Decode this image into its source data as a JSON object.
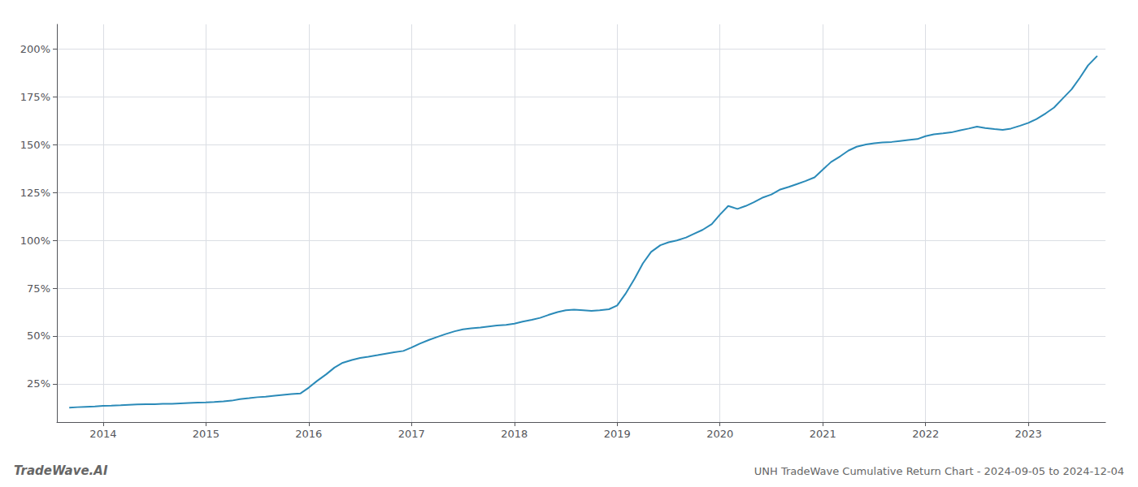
{
  "chart_data": {
    "type": "line",
    "title": "UNH TradeWave Cumulative Return Chart - 2024-09-05 to 2024-12-04",
    "annotations": [
      "TradeWave.AI"
    ],
    "color": "#2a8ab8",
    "grid": true,
    "xlim": [
      2013.55,
      2023.75
    ],
    "xticks": [
      2014,
      2015,
      2016,
      2017,
      2018,
      2019,
      2020,
      2021,
      2022,
      2023
    ],
    "ylim": [
      5,
      213
    ],
    "yticks": [
      {
        "value": 25,
        "label": "25%"
      },
      {
        "value": 50,
        "label": "50%"
      },
      {
        "value": 75,
        "label": "75%"
      },
      {
        "value": 100,
        "label": "100%"
      },
      {
        "value": 125,
        "label": "125%"
      },
      {
        "value": 150,
        "label": "150%"
      },
      {
        "value": 175,
        "label": "175%"
      },
      {
        "value": 200,
        "label": "200%"
      }
    ],
    "x": [
      2013.67,
      2013.75,
      2013.83,
      2013.92,
      2014.0,
      2014.08,
      2014.17,
      2014.25,
      2014.33,
      2014.42,
      2014.5,
      2014.58,
      2014.67,
      2014.75,
      2014.83,
      2014.92,
      2015.0,
      2015.08,
      2015.17,
      2015.25,
      2015.33,
      2015.42,
      2015.5,
      2015.58,
      2015.67,
      2015.75,
      2015.83,
      2015.92,
      2016.0,
      2016.08,
      2016.17,
      2016.25,
      2016.33,
      2016.42,
      2016.5,
      2016.58,
      2016.67,
      2016.75,
      2016.83,
      2016.92,
      2017.0,
      2017.08,
      2017.17,
      2017.25,
      2017.33,
      2017.42,
      2017.5,
      2017.58,
      2017.67,
      2017.75,
      2017.83,
      2017.92,
      2018.0,
      2018.08,
      2018.17,
      2018.25,
      2018.33,
      2018.42,
      2018.5,
      2018.58,
      2018.67,
      2018.75,
      2018.83,
      2018.92,
      2019.0,
      2019.08,
      2019.17,
      2019.25,
      2019.33,
      2019.42,
      2019.5,
      2019.58,
      2019.67,
      2019.75,
      2019.83,
      2019.92,
      2020.0,
      2020.08,
      2020.17,
      2020.25,
      2020.33,
      2020.42,
      2020.5,
      2020.58,
      2020.67,
      2020.75,
      2020.83,
      2020.92,
      2021.0,
      2021.08,
      2021.17,
      2021.25,
      2021.33,
      2021.42,
      2021.5,
      2021.58,
      2021.67,
      2021.75,
      2021.83,
      2021.92,
      2022.0,
      2022.08,
      2022.17,
      2022.25,
      2022.33,
      2022.42,
      2022.5,
      2022.58,
      2022.67,
      2022.75,
      2022.83,
      2022.92,
      2023.0,
      2023.08,
      2023.17,
      2023.25,
      2023.33,
      2023.42,
      2023.5,
      2023.58,
      2023.67
    ],
    "values": [
      12.5,
      12.8,
      13.0,
      13.2,
      13.5,
      13.6,
      13.8,
      14.0,
      14.2,
      14.3,
      14.3,
      14.5,
      14.6,
      14.8,
      15.0,
      15.2,
      15.3,
      15.5,
      15.8,
      16.2,
      17.0,
      17.5,
      18.0,
      18.3,
      18.8,
      19.2,
      19.6,
      20.0,
      23.0,
      26.5,
      30.0,
      33.5,
      36.0,
      37.5,
      38.5,
      39.2,
      40.0,
      40.8,
      41.5,
      42.2,
      44.0,
      46.0,
      48.0,
      49.5,
      51.0,
      52.5,
      53.5,
      54.0,
      54.5,
      55.0,
      55.5,
      55.8,
      56.5,
      57.5,
      58.5,
      59.5,
      61.0,
      62.5,
      63.5,
      63.8,
      63.5,
      63.2,
      63.5,
      64.0,
      66.0,
      72.0,
      80.0,
      88.0,
      94.0,
      97.5,
      99.0,
      100.0,
      101.5,
      103.5,
      105.5,
      108.5,
      113.5,
      118.0,
      116.5,
      118.0,
      120.0,
      122.5,
      124.0,
      126.5,
      128.0,
      129.5,
      131.0,
      133.0,
      137.0,
      141.0,
      144.0,
      147.0,
      149.0,
      150.2,
      150.8,
      151.2,
      151.5,
      152.0,
      152.5,
      153.0,
      154.5,
      155.5,
      156.0,
      156.5,
      157.5,
      158.5,
      159.5,
      158.8,
      158.2,
      157.8,
      158.5,
      160.0,
      161.5,
      163.5,
      166.5,
      169.5,
      174.0,
      179.0,
      185.0,
      191.5,
      196.5
    ]
  }
}
